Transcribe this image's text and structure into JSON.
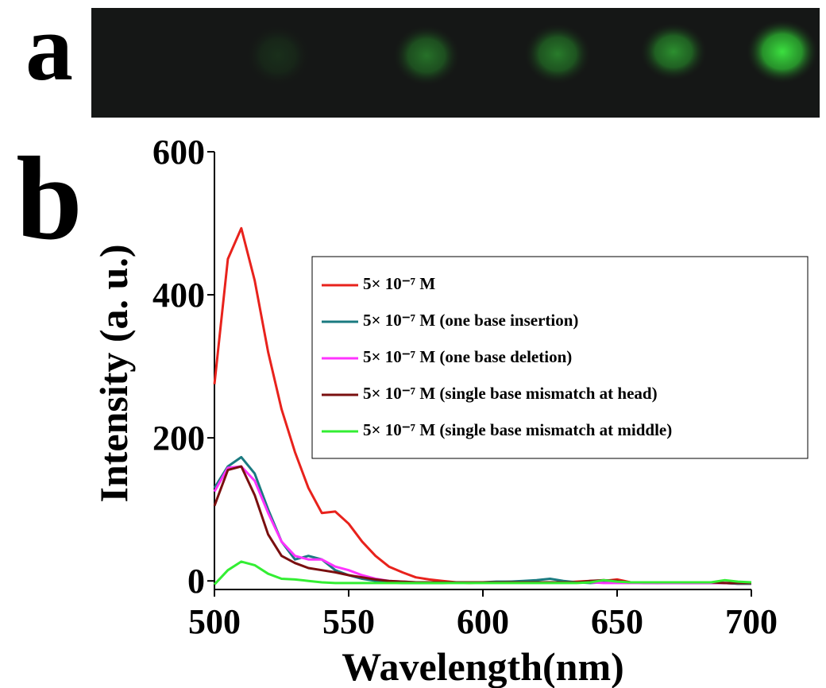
{
  "figure": {
    "panel_a_label": "a",
    "panel_b_label": "b"
  },
  "chart_data": {
    "type": "line",
    "x_label": "Wavelength(nm)",
    "y_label": "Intensity (a. u.)",
    "x": [
      500,
      505,
      510,
      515,
      520,
      525,
      530,
      535,
      540,
      545,
      550,
      555,
      560,
      565,
      570,
      575,
      580,
      585,
      590,
      595,
      600,
      605,
      610,
      615,
      620,
      625,
      630,
      635,
      640,
      645,
      650,
      655,
      660,
      665,
      670,
      675,
      680,
      685,
      690,
      695,
      700
    ],
    "xlim": [
      500,
      700
    ],
    "xticks": [
      500,
      550,
      600,
      650,
      700
    ],
    "ylim": [
      -12,
      600
    ],
    "yticks": [
      0,
      200,
      400,
      600
    ],
    "legend": "right",
    "series": [
      {
        "name": "5× 10⁻⁷ M",
        "color": "#e8221c",
        "values": [
          275,
          450,
          493,
          420,
          320,
          240,
          180,
          130,
          95,
          97,
          80,
          55,
          35,
          20,
          12,
          5,
          2,
          0,
          -2,
          -3,
          -2,
          -2,
          -1,
          -1,
          -2,
          -2,
          -2,
          -1,
          0,
          0,
          2,
          -2,
          -2,
          -3,
          -2,
          -3,
          -3,
          -3,
          -3,
          -4,
          -4
        ]
      },
      {
        "name": "5× 10⁻⁷ M (one base insertion)",
        "color": "#1a7a80",
        "values": [
          130,
          160,
          173,
          150,
          100,
          55,
          30,
          35,
          30,
          15,
          8,
          3,
          0,
          -2,
          -3,
          -3,
          -3,
          -3,
          -2,
          -2,
          -2,
          -1,
          -1,
          0,
          1,
          3,
          0,
          -2,
          -3,
          -2,
          -2,
          -2,
          -3,
          -3,
          -3,
          -3,
          -3,
          -3,
          -3,
          -4,
          -4
        ]
      },
      {
        "name": "5× 10⁻⁷ M (one base deletion)",
        "color": "#ff33ff",
        "values": [
          125,
          158,
          160,
          140,
          95,
          55,
          35,
          30,
          30,
          20,
          15,
          8,
          3,
          0,
          -1,
          -2,
          -2,
          -2,
          -2,
          -2,
          -2,
          -2,
          -2,
          -2,
          -2,
          -2,
          -2,
          -2,
          -2,
          -3,
          -3,
          -3,
          -3,
          -3,
          -3,
          -3,
          -3,
          -3,
          -3,
          -3,
          -3
        ]
      },
      {
        "name": "5× 10⁻⁷ M (single base mismatch at head)",
        "color": "#7a0f0f",
        "values": [
          105,
          155,
          160,
          120,
          65,
          35,
          25,
          18,
          15,
          12,
          8,
          5,
          2,
          0,
          -1,
          -2,
          -2,
          -2,
          -2,
          -2,
          -2,
          -2,
          -2,
          -2,
          -2,
          -2,
          -2,
          -2,
          0,
          1,
          0,
          -2,
          -2,
          -2,
          -2,
          -2,
          -2,
          -2,
          -3,
          -3,
          -3
        ]
      },
      {
        "name": "5× 10⁻⁷ M (single base mismatch at middle)",
        "color": "#33ee33",
        "values": [
          -5,
          15,
          27,
          22,
          10,
          3,
          2,
          0,
          -2,
          -3,
          -3,
          -3,
          -3,
          -3,
          -3,
          -3,
          -3,
          -3,
          -3,
          -3,
          -3,
          -3,
          -3,
          -3,
          -3,
          -3,
          -3,
          -3,
          -2,
          1,
          -1,
          -2,
          -2,
          -2,
          -2,
          -2,
          -2,
          -2,
          1,
          -1,
          -2
        ]
      }
    ]
  }
}
